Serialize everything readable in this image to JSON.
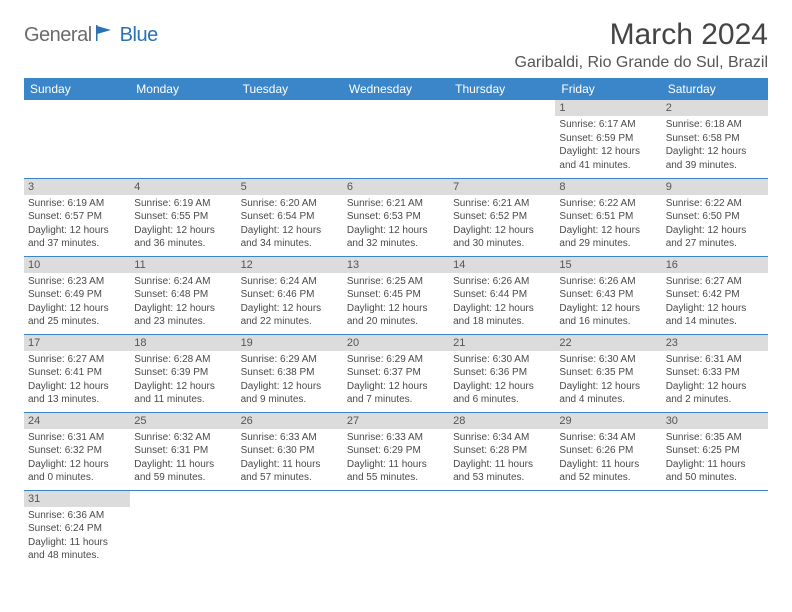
{
  "logo": {
    "part1": "General",
    "part2": "Blue"
  },
  "title": "March 2024",
  "location": "Garibaldi, Rio Grande do Sul, Brazil",
  "colors": {
    "header_bg": "#3a86c8",
    "header_text": "#ffffff",
    "daynum_bg": "#dcdcdc",
    "body_text": "#4a4a4a",
    "logo_gray": "#6b6b6b",
    "logo_blue": "#2a72b5"
  },
  "weekdays": [
    "Sunday",
    "Monday",
    "Tuesday",
    "Wednesday",
    "Thursday",
    "Friday",
    "Saturday"
  ],
  "weeks": [
    [
      null,
      null,
      null,
      null,
      null,
      {
        "n": "1",
        "sr": "6:17 AM",
        "ss": "6:59 PM",
        "dl": "12 hours and 41 minutes."
      },
      {
        "n": "2",
        "sr": "6:18 AM",
        "ss": "6:58 PM",
        "dl": "12 hours and 39 minutes."
      }
    ],
    [
      {
        "n": "3",
        "sr": "6:19 AM",
        "ss": "6:57 PM",
        "dl": "12 hours and 37 minutes."
      },
      {
        "n": "4",
        "sr": "6:19 AM",
        "ss": "6:55 PM",
        "dl": "12 hours and 36 minutes."
      },
      {
        "n": "5",
        "sr": "6:20 AM",
        "ss": "6:54 PM",
        "dl": "12 hours and 34 minutes."
      },
      {
        "n": "6",
        "sr": "6:21 AM",
        "ss": "6:53 PM",
        "dl": "12 hours and 32 minutes."
      },
      {
        "n": "7",
        "sr": "6:21 AM",
        "ss": "6:52 PM",
        "dl": "12 hours and 30 minutes."
      },
      {
        "n": "8",
        "sr": "6:22 AM",
        "ss": "6:51 PM",
        "dl": "12 hours and 29 minutes."
      },
      {
        "n": "9",
        "sr": "6:22 AM",
        "ss": "6:50 PM",
        "dl": "12 hours and 27 minutes."
      }
    ],
    [
      {
        "n": "10",
        "sr": "6:23 AM",
        "ss": "6:49 PM",
        "dl": "12 hours and 25 minutes."
      },
      {
        "n": "11",
        "sr": "6:24 AM",
        "ss": "6:48 PM",
        "dl": "12 hours and 23 minutes."
      },
      {
        "n": "12",
        "sr": "6:24 AM",
        "ss": "6:46 PM",
        "dl": "12 hours and 22 minutes."
      },
      {
        "n": "13",
        "sr": "6:25 AM",
        "ss": "6:45 PM",
        "dl": "12 hours and 20 minutes."
      },
      {
        "n": "14",
        "sr": "6:26 AM",
        "ss": "6:44 PM",
        "dl": "12 hours and 18 minutes."
      },
      {
        "n": "15",
        "sr": "6:26 AM",
        "ss": "6:43 PM",
        "dl": "12 hours and 16 minutes."
      },
      {
        "n": "16",
        "sr": "6:27 AM",
        "ss": "6:42 PM",
        "dl": "12 hours and 14 minutes."
      }
    ],
    [
      {
        "n": "17",
        "sr": "6:27 AM",
        "ss": "6:41 PM",
        "dl": "12 hours and 13 minutes."
      },
      {
        "n": "18",
        "sr": "6:28 AM",
        "ss": "6:39 PM",
        "dl": "12 hours and 11 minutes."
      },
      {
        "n": "19",
        "sr": "6:29 AM",
        "ss": "6:38 PM",
        "dl": "12 hours and 9 minutes."
      },
      {
        "n": "20",
        "sr": "6:29 AM",
        "ss": "6:37 PM",
        "dl": "12 hours and 7 minutes."
      },
      {
        "n": "21",
        "sr": "6:30 AM",
        "ss": "6:36 PM",
        "dl": "12 hours and 6 minutes."
      },
      {
        "n": "22",
        "sr": "6:30 AM",
        "ss": "6:35 PM",
        "dl": "12 hours and 4 minutes."
      },
      {
        "n": "23",
        "sr": "6:31 AM",
        "ss": "6:33 PM",
        "dl": "12 hours and 2 minutes."
      }
    ],
    [
      {
        "n": "24",
        "sr": "6:31 AM",
        "ss": "6:32 PM",
        "dl": "12 hours and 0 minutes."
      },
      {
        "n": "25",
        "sr": "6:32 AM",
        "ss": "6:31 PM",
        "dl": "11 hours and 59 minutes."
      },
      {
        "n": "26",
        "sr": "6:33 AM",
        "ss": "6:30 PM",
        "dl": "11 hours and 57 minutes."
      },
      {
        "n": "27",
        "sr": "6:33 AM",
        "ss": "6:29 PM",
        "dl": "11 hours and 55 minutes."
      },
      {
        "n": "28",
        "sr": "6:34 AM",
        "ss": "6:28 PM",
        "dl": "11 hours and 53 minutes."
      },
      {
        "n": "29",
        "sr": "6:34 AM",
        "ss": "6:26 PM",
        "dl": "11 hours and 52 minutes."
      },
      {
        "n": "30",
        "sr": "6:35 AM",
        "ss": "6:25 PM",
        "dl": "11 hours and 50 minutes."
      }
    ],
    [
      {
        "n": "31",
        "sr": "6:36 AM",
        "ss": "6:24 PM",
        "dl": "11 hours and 48 minutes."
      },
      null,
      null,
      null,
      null,
      null,
      null
    ]
  ],
  "labels": {
    "sunrise": "Sunrise: ",
    "sunset": "Sunset: ",
    "daylight": "Daylight: "
  }
}
